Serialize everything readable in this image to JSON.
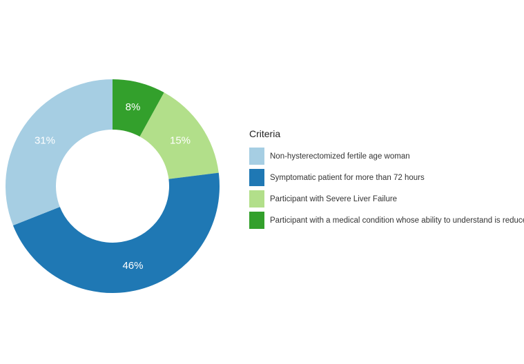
{
  "chart_data": {
    "type": "pie",
    "subtype": "donut",
    "title": "",
    "legend_title": "Criteria",
    "legend_position": "right",
    "slices": [
      {
        "name": "Participant with a medical condition whose ability to understand is reduced",
        "value": 8,
        "label": "8%",
        "color": "#33a02c"
      },
      {
        "name": "Participant with Severe Liver Failure",
        "value": 15,
        "label": "15%",
        "color": "#b2df8a"
      },
      {
        "name": "Symptomatic patient for more than 72 hours",
        "value": 46,
        "label": "46%",
        "color": "#1f78b4"
      },
      {
        "name": "Non-hysterectomized fertile age woman",
        "value": 31,
        "label": "31%",
        "color": "#a6cee3"
      }
    ],
    "legend_order": [
      "Non-hysterectomized fertile age woman",
      "Symptomatic patient for more than 72 hours",
      "Participant with Severe Liver Failure",
      "Participant with a medical condition whose ability to understand is reduced"
    ]
  }
}
